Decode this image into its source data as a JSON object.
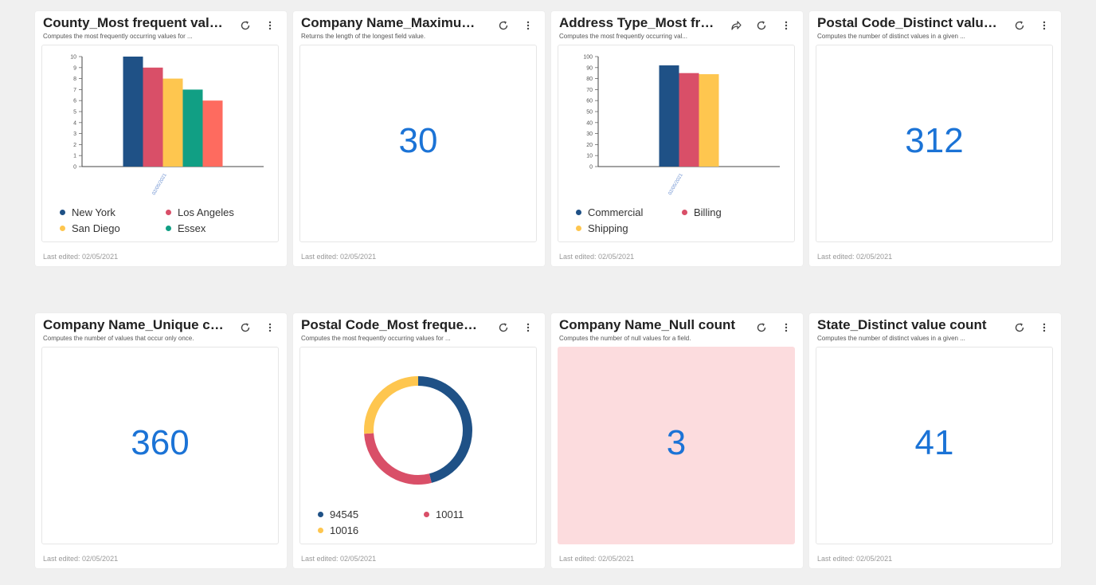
{
  "colors": {
    "navy": "#1f5186",
    "crimson": "#d94f68",
    "gold": "#fec64f",
    "teal": "#119f84",
    "coral": "#fe6b5f",
    "value_blue": "#1b73d6",
    "alert_bg": "#fcdcde"
  },
  "last_edited": "Last edited: 02/05/2021",
  "cards": [
    {
      "title": "County_Most frequent values",
      "description": "Computes the most frequently occurring values for ...",
      "icons": [
        "refresh-icon",
        "more-vertical-icon"
      ]
    },
    {
      "title": "Company Name_Maximum ...",
      "description": "Returns the length of the longest field value.",
      "value": "30",
      "icons": [
        "refresh-icon",
        "more-vertical-icon"
      ]
    },
    {
      "title": "Address Type_Most fre...",
      "description": "Computes the most frequently occurring val...",
      "icons": [
        "share-icon",
        "refresh-icon",
        "more-vertical-icon"
      ]
    },
    {
      "title": "Postal Code_Distinct value ...",
      "description": "Computes the number of distinct values in a given ...",
      "value": "312",
      "icons": [
        "refresh-icon",
        "more-vertical-icon"
      ]
    },
    {
      "title": "Company Name_Unique co...",
      "description": "Computes the number of values that occur only once.",
      "value": "360",
      "icons": [
        "refresh-icon",
        "more-vertical-icon"
      ]
    },
    {
      "title": "Postal Code_Most frequent...",
      "description": "Computes the most frequently occurring values for ...",
      "icons": [
        "refresh-icon",
        "more-vertical-icon"
      ]
    },
    {
      "title": "Company Name_Null count",
      "description": "Computes the number of null values for a field.",
      "value": "3",
      "icons": [
        "refresh-icon",
        "more-vertical-icon"
      ]
    },
    {
      "title": "State_Distinct value count",
      "description": "Computes the number of distinct values in a given ...",
      "value": "41",
      "icons": [
        "refresh-icon",
        "more-vertical-icon"
      ]
    }
  ],
  "chart_data": [
    {
      "type": "bar",
      "categories": [
        "02/05/2021"
      ],
      "series": [
        {
          "name": "New York",
          "values": [
            10
          ]
        },
        {
          "name": "Los Angeles",
          "values": [
            9
          ]
        },
        {
          "name": "San Diego",
          "values": [
            8
          ]
        },
        {
          "name": "Essex",
          "values": [
            7
          ]
        },
        {
          "values": [
            6
          ]
        }
      ],
      "yticks": [
        "0",
        "1",
        "2",
        "3",
        "4",
        "5",
        "6",
        "7",
        "8",
        "9",
        "10"
      ],
      "ylim": [
        0,
        10
      ],
      "grid": false,
      "legend": "bottom"
    },
    {
      "type": "bar",
      "categories": [
        "02/05/2021"
      ],
      "series": [
        {
          "name": "Commercial",
          "values": [
            92
          ]
        },
        {
          "name": "Billing",
          "values": [
            85
          ]
        },
        {
          "name": "Shipping",
          "values": [
            84
          ]
        }
      ],
      "yticks": [
        "0",
        "10",
        "20",
        "30",
        "40",
        "50",
        "60",
        "70",
        "80",
        "90",
        "100"
      ],
      "ylim": [
        0,
        100
      ],
      "grid": false,
      "legend": "bottom"
    },
    {
      "type": "pie",
      "donut": true,
      "series": [
        {
          "name": "94545",
          "value": 46
        },
        {
          "name": "10011",
          "value": 28
        },
        {
          "name": "10016",
          "value": 26
        }
      ],
      "legend": "bottom"
    }
  ]
}
